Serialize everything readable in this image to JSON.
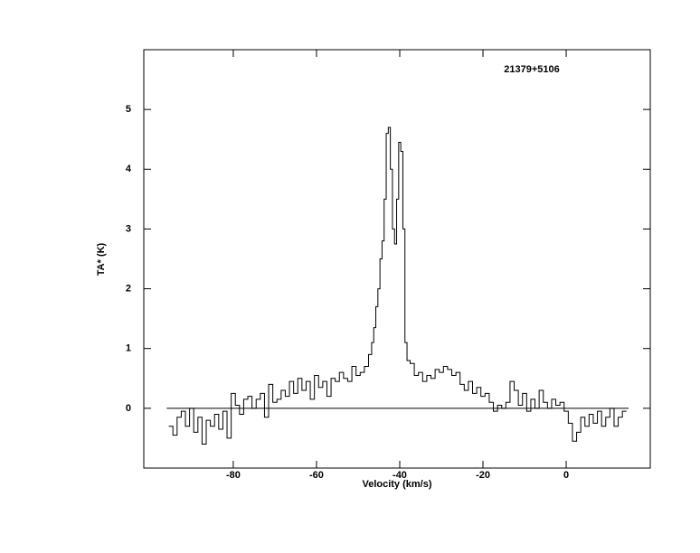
{
  "chart_data": {
    "type": "step",
    "title": "21379+5106",
    "x_label": "Velocity (km/s)",
    "y_label": "TA* (K)",
    "xlim": [
      -101.5,
      20.2
    ],
    "ylim": [
      -1,
      6
    ],
    "xticks": [
      -80,
      -60,
      -40,
      -20,
      0
    ],
    "yticks": [
      0,
      1,
      2,
      3,
      4,
      5
    ],
    "hline": {
      "y": 0,
      "x": [
        -96,
        15
      ]
    },
    "color": "#000000",
    "x": [
      -95,
      -94,
      -93,
      -92,
      -91,
      -90,
      -89,
      -88,
      -87,
      -86,
      -85,
      -84,
      -83,
      -82,
      -81,
      -80,
      -79,
      -78,
      -77,
      -76,
      -75,
      -74,
      -73,
      -72,
      -71,
      -70,
      -69,
      -68,
      -67,
      -66,
      -65,
      -64,
      -63,
      -62,
      -61,
      -60,
      -59,
      -58,
      -57,
      -56,
      -55,
      -54,
      -53,
      -52,
      -51,
      -50,
      -49,
      -48,
      -47,
      -46.5,
      -46,
      -45.5,
      -45,
      -44.5,
      -44,
      -43.5,
      -43,
      -42.5,
      -42,
      -41.5,
      -41,
      -40.5,
      -40,
      -39.5,
      -39,
      -38.5,
      -38,
      -37,
      -36,
      -35,
      -34,
      -33,
      -32,
      -31,
      -30,
      -29,
      -28,
      -27,
      -26,
      -25,
      -24,
      -23,
      -22,
      -21,
      -20,
      -19,
      -18,
      -17,
      -16,
      -15,
      -14,
      -13,
      -12,
      -11,
      -10,
      -9,
      -8,
      -7,
      -6,
      -5,
      -4,
      -3,
      -2,
      -1,
      0,
      1,
      2,
      3,
      4,
      5,
      6,
      7,
      8,
      9,
      10,
      11,
      12,
      13,
      14
    ],
    "values": [
      -0.3,
      -0.45,
      -0.15,
      -0.05,
      -0.3,
      0.0,
      -0.4,
      -0.15,
      -0.6,
      -0.2,
      -0.3,
      -0.1,
      -0.35,
      -0.05,
      -0.5,
      0.25,
      0.05,
      -0.1,
      0.15,
      0.2,
      0.0,
      0.15,
      0.25,
      -0.15,
      0.4,
      0.1,
      0.15,
      0.3,
      0.2,
      0.45,
      0.25,
      0.5,
      0.3,
      0.45,
      0.15,
      0.55,
      0.35,
      0.45,
      0.2,
      0.5,
      0.45,
      0.6,
      0.5,
      0.45,
      0.7,
      0.55,
      0.6,
      0.7,
      0.9,
      1.1,
      1.35,
      1.7,
      2.0,
      2.5,
      2.8,
      3.5,
      4.6,
      4.7,
      4.0,
      3.0,
      2.75,
      3.5,
      4.45,
      4.3,
      3.0,
      1.1,
      0.8,
      0.75,
      0.55,
      0.6,
      0.45,
      0.55,
      0.5,
      0.65,
      0.6,
      0.7,
      0.65,
      0.55,
      0.6,
      0.4,
      0.3,
      0.45,
      0.25,
      0.35,
      0.2,
      0.25,
      0.1,
      -0.05,
      0.05,
      0.0,
      0.1,
      0.45,
      0.3,
      0.05,
      0.25,
      -0.05,
      0.15,
      0.0,
      0.3,
      0.1,
      0.0,
      0.15,
      0.05,
      0.1,
      -0.05,
      -0.25,
      -0.55,
      -0.4,
      -0.15,
      -0.3,
      -0.1,
      -0.25,
      -0.05,
      -0.3,
      -0.15,
      0.0,
      -0.3,
      -0.15,
      -0.05
    ]
  }
}
